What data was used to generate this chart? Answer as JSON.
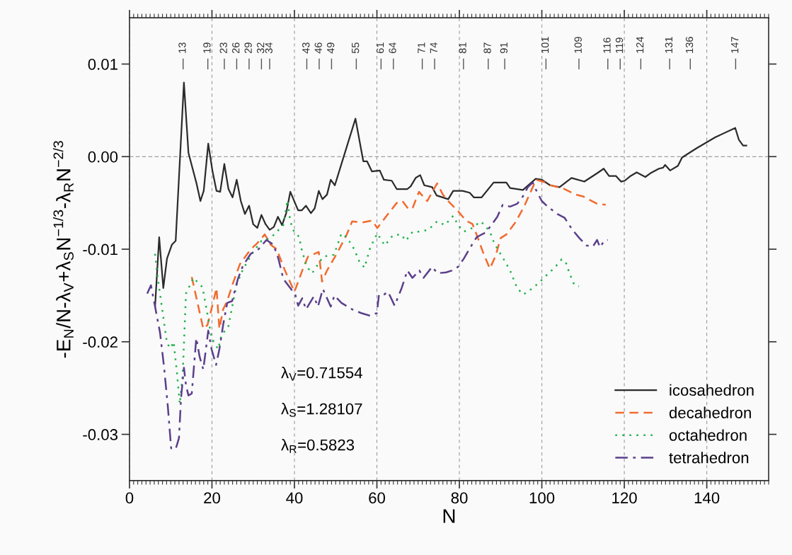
{
  "chart_data": {
    "type": "line",
    "xlabel": "N",
    "ylabel": "-E$_{N}$/N-λ$_{V}$+λ$_{S}$N$^{−1/3}$-λ$_{R}$N$^{−2/3}$",
    "xlim": [
      0,
      155
    ],
    "xticks": [
      0,
      20,
      40,
      60,
      80,
      100,
      120,
      140
    ],
    "ylim": [
      -0.035,
      0.015
    ],
    "yticks": [
      {
        "value": -0.03,
        "label": "-0.03"
      },
      {
        "value": -0.02,
        "label": "-0.02"
      },
      {
        "value": -0.01,
        "label": "-0.01"
      },
      {
        "value": 0,
        "label": "0.00"
      },
      {
        "value": 0.01,
        "label": "0.01"
      }
    ],
    "grid": "x",
    "legend": "bottom right",
    "ref_lines": [
      {
        "axis": "y",
        "value": 0,
        "color": "#888888",
        "line_style": "dashed"
      }
    ],
    "series": [
      {
        "name": "icosahedron",
        "color": "#2b2b2b",
        "line_style": "solid",
        "x": [
          6.2,
          7.2,
          8.2,
          9.1,
          10.3,
          11.2,
          13.2,
          14.3,
          16.2,
          17.2,
          18.0,
          19.1,
          20.1,
          21.1,
          22.0,
          23.0,
          24.0,
          25.0,
          26.0,
          27.0,
          28.0,
          29.0,
          30.0,
          31.0,
          32.0,
          33.0,
          34.0,
          35.0,
          36.0,
          37.0,
          38.0,
          39.0,
          40.9,
          41.8,
          42.8,
          44.0,
          44.9,
          45.9,
          46.8,
          47.9,
          48.8,
          49.8,
          54.8,
          56.7,
          57.6,
          58.8,
          60.7,
          61.7,
          63.6,
          64.8,
          67.4,
          68.2,
          69.4,
          70.5,
          71.5,
          73.4,
          74.5,
          77.3,
          78.5,
          80.8,
          82.5,
          83.5,
          85.4,
          88.3,
          91.4,
          92.3,
          95.4,
          98.5,
          100.0,
          102.0,
          104.3,
          107.2,
          110.3,
          113.4,
          115.0,
          116.3,
          118.0,
          119.2,
          120.1,
          121.5,
          123.0,
          125.1,
          126.3,
          128.4,
          129.4,
          129.9,
          131.1,
          133.0,
          134.0,
          137.5,
          142.1,
          146.9,
          147.8,
          148.8,
          149.6
        ],
        "values": [
          -0.0162,
          -0.0087,
          -0.0142,
          -0.011,
          -0.0095,
          -0.0091,
          0.008,
          0.0004,
          -0.0028,
          -0.0048,
          -0.0037,
          0.0014,
          -0.0015,
          -0.0037,
          -0.0038,
          -0.0008,
          -0.0035,
          -0.0044,
          -0.0025,
          -0.0048,
          -0.0062,
          -0.0053,
          -0.0073,
          -0.0077,
          -0.0063,
          -0.0073,
          -0.0079,
          -0.0076,
          -0.0065,
          -0.0074,
          -0.0061,
          -0.0038,
          -0.0058,
          -0.0058,
          -0.0053,
          -0.0061,
          -0.0056,
          -0.0037,
          -0.0046,
          -0.0041,
          -0.0025,
          -0.0031,
          0.0041,
          -0.0005,
          -0.0005,
          -0.0016,
          -0.0015,
          -0.0025,
          -0.0026,
          -0.0035,
          -0.0035,
          -0.0032,
          -0.0023,
          -0.002,
          -0.0031,
          -0.0033,
          -0.0042,
          -0.0046,
          -0.0037,
          -0.0037,
          -0.0039,
          -0.0044,
          -0.0044,
          -0.0028,
          -0.0028,
          -0.0034,
          -0.0036,
          -0.0024,
          -0.0025,
          -0.0031,
          -0.0033,
          -0.0023,
          -0.0027,
          -0.0018,
          -0.0013,
          -0.0021,
          -0.0021,
          -0.0027,
          -0.0026,
          -0.0021,
          -0.0017,
          -0.0022,
          -0.0018,
          -0.0013,
          -0.0012,
          -0.0009,
          -0.0015,
          -0.001,
          -0.0001,
          0.0009,
          0.0021,
          0.0031,
          0.0018,
          0.0012,
          0.0012
        ]
      },
      {
        "name": "decahedron",
        "color": "#f26b2e",
        "line_style": "dashed",
        "x": [
          15.1,
          17.9,
          18.9,
          19.6,
          21.1,
          21.8,
          22.7,
          23.7,
          24.9,
          26.8,
          29.4,
          30.9,
          32.8,
          34.2,
          35.7,
          37.6,
          40.0,
          41.9,
          43.3,
          45.9,
          46.7,
          47.9,
          50.5,
          52.7,
          54.0,
          56.7,
          58.8,
          60.1,
          62.7,
          64.8,
          66.2,
          67.7,
          68.7,
          70.2,
          72.2,
          74.6,
          76.0,
          77.3,
          79.7,
          81.6,
          83.2,
          84.5,
          85.7,
          87.4,
          88.8,
          90.0,
          91.4,
          93.6,
          95.7,
          97.4,
          98.6,
          100.3,
          102.2,
          105.5,
          108.2,
          110.0,
          113.4,
          115.5
        ],
        "values": [
          -0.013,
          -0.0186,
          -0.0182,
          -0.017,
          -0.0142,
          -0.0186,
          -0.0165,
          -0.0156,
          -0.0139,
          -0.0116,
          -0.01,
          -0.0094,
          -0.0084,
          -0.0095,
          -0.01,
          -0.0122,
          -0.0146,
          -0.0123,
          -0.0108,
          -0.0103,
          -0.0135,
          -0.0123,
          -0.0103,
          -0.0084,
          -0.007,
          -0.0071,
          -0.0069,
          -0.0077,
          -0.0062,
          -0.005,
          -0.0048,
          -0.0057,
          -0.0055,
          -0.0038,
          -0.0048,
          -0.0029,
          -0.0041,
          -0.0048,
          -0.0059,
          -0.0069,
          -0.0073,
          -0.0088,
          -0.0103,
          -0.0121,
          -0.0107,
          -0.0088,
          -0.0084,
          -0.0071,
          -0.0054,
          -0.0037,
          -0.0025,
          -0.0027,
          -0.0031,
          -0.0035,
          -0.0041,
          -0.0043,
          -0.0051,
          -0.0052
        ]
      },
      {
        "name": "octahedron",
        "color": "#1fb24a",
        "line_style": "dotted",
        "x": [
          6.2,
          6.6,
          7.1,
          8.1,
          9.1,
          10.0,
          10.7,
          11.5,
          12.2,
          12.9,
          13.7,
          15.5,
          17.7,
          18.9,
          19.9,
          21.5,
          22.3,
          24.0,
          24.9,
          26.0,
          27.5,
          29.7,
          32.0,
          34.2,
          37.3,
          38.3,
          39.0,
          39.9,
          41.2,
          41.6,
          43.0,
          44.3,
          45.9,
          47.0,
          49.6,
          51.4,
          52.7,
          54.5,
          55.7,
          57.0,
          58.4,
          60.1,
          61.9,
          63.9,
          65.9,
          67.0,
          68.7,
          70.4,
          72.5,
          74.6,
          76.5,
          78.5,
          79.7,
          81.1,
          83.2,
          85.1,
          85.9,
          87.4,
          88.5,
          90.9,
          92.3,
          94.0,
          95.5,
          97.8,
          99.6,
          101.4,
          103.1,
          104.8,
          105.8,
          106.7,
          107.9,
          109.0
        ],
        "values": [
          -0.0105,
          -0.0122,
          -0.0139,
          -0.017,
          -0.0202,
          -0.0207,
          -0.02,
          -0.0233,
          -0.0267,
          -0.0236,
          -0.0148,
          -0.0131,
          -0.0141,
          -0.017,
          -0.0196,
          -0.0208,
          -0.0193,
          -0.0183,
          -0.0162,
          -0.0138,
          -0.0122,
          -0.0105,
          -0.0091,
          -0.0088,
          -0.0074,
          -0.0047,
          -0.007,
          -0.0081,
          -0.0087,
          -0.0098,
          -0.0119,
          -0.0126,
          -0.0115,
          -0.0108,
          -0.0106,
          -0.0083,
          -0.0087,
          -0.01,
          -0.0113,
          -0.012,
          -0.0098,
          -0.0083,
          -0.0096,
          -0.0085,
          -0.0084,
          -0.0091,
          -0.0081,
          -0.0081,
          -0.0079,
          -0.007,
          -0.0074,
          -0.0064,
          -0.0074,
          -0.0081,
          -0.0077,
          -0.007,
          -0.0073,
          -0.0081,
          -0.0094,
          -0.0112,
          -0.0123,
          -0.0142,
          -0.0149,
          -0.0142,
          -0.0135,
          -0.0127,
          -0.012,
          -0.0111,
          -0.0114,
          -0.0126,
          -0.0139,
          -0.014
        ]
      },
      {
        "name": "tetrahedron",
        "color": "#5b3f8c",
        "line_style": "dashdot",
        "x": [
          4.3,
          5.2,
          6.2,
          7.4,
          8.4,
          9.3,
          10.1,
          11.2,
          12.0,
          12.5,
          13.2,
          13.7,
          14.3,
          15.1,
          16.2,
          17.0,
          17.9,
          19.1,
          19.9,
          21.0,
          21.8,
          22.7,
          23.7,
          24.9,
          26.3,
          27.5,
          29.4,
          31.3,
          33.2,
          34.9,
          36.1,
          37.3,
          40.2,
          40.9,
          41.9,
          42.8,
          44.7,
          45.7,
          46.9,
          48.8,
          49.7,
          51.4,
          54.0,
          56.2,
          58.4,
          60.0,
          60.5,
          61.7,
          62.7,
          64.3,
          66.0,
          67.4,
          68.6,
          70.3,
          71.3,
          73.4,
          74.7,
          76.8,
          78.2,
          79.7,
          81.1,
          82.8,
          84.2,
          86.3,
          87.6,
          89.2,
          90.5,
          92.3,
          94.0,
          95.4,
          96.6,
          97.8,
          98.8,
          100.0,
          101.4,
          103.8,
          105.5,
          107.4,
          109.1,
          110.8,
          112.4,
          113.4,
          114.1,
          115.1,
          116.0
        ],
        "values": [
          -0.0148,
          -0.0139,
          -0.0162,
          -0.019,
          -0.0228,
          -0.027,
          -0.0315,
          -0.0316,
          -0.0304,
          -0.0261,
          -0.0228,
          -0.0247,
          -0.0258,
          -0.0256,
          -0.0196,
          -0.0216,
          -0.023,
          -0.0188,
          -0.0208,
          -0.0225,
          -0.0208,
          -0.0182,
          -0.0158,
          -0.0156,
          -0.0132,
          -0.0118,
          -0.0105,
          -0.01,
          -0.009,
          -0.0095,
          -0.011,
          -0.0132,
          -0.0149,
          -0.0161,
          -0.0153,
          -0.0165,
          -0.0151,
          -0.0162,
          -0.0143,
          -0.0162,
          -0.015,
          -0.0158,
          -0.0165,
          -0.0169,
          -0.0172,
          -0.0169,
          -0.0149,
          -0.0149,
          -0.0146,
          -0.0161,
          -0.0142,
          -0.0123,
          -0.0131,
          -0.0123,
          -0.0131,
          -0.0119,
          -0.0126,
          -0.0125,
          -0.0123,
          -0.0119,
          -0.011,
          -0.0097,
          -0.0087,
          -0.0082,
          -0.0075,
          -0.0065,
          -0.0052,
          -0.0054,
          -0.0051,
          -0.0043,
          -0.0033,
          -0.0028,
          -0.0038,
          -0.0048,
          -0.0054,
          -0.0062,
          -0.0066,
          -0.0079,
          -0.0088,
          -0.0096,
          -0.0097,
          -0.009,
          -0.0098,
          -0.0091,
          -0.009
        ]
      }
    ],
    "annotations": [
      "λ$_{V}$=0.71554",
      "λ$_{S}$=1.28107",
      "λ$_{R}$=0.5823"
    ],
    "x2lim": [
      0,
      155
    ],
    "x2ticks": [
      13,
      19,
      23,
      26,
      29,
      32,
      34,
      43,
      46,
      49,
      55,
      61,
      64,
      71,
      74,
      81,
      87,
      91,
      101,
      109,
      116,
      119,
      124,
      131,
      136,
      147
    ]
  }
}
